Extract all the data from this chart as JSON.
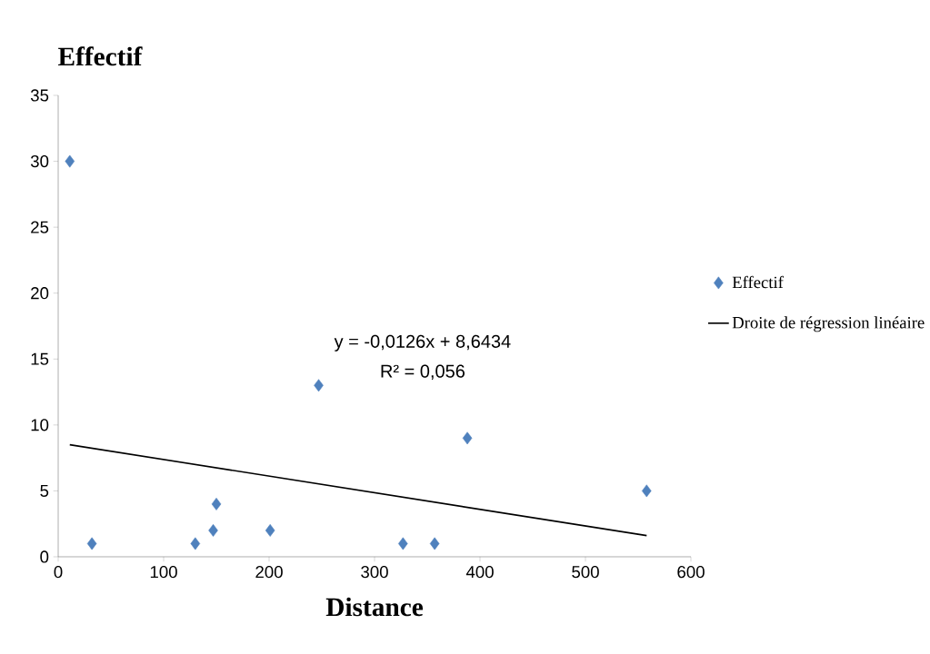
{
  "chart_data": {
    "type": "scatter",
    "xlabel": "Distance",
    "ylabel": "Effectif",
    "xlim": [
      0,
      600
    ],
    "ylim": [
      0,
      35
    ],
    "xticks": [
      0,
      100,
      200,
      300,
      400,
      500,
      600
    ],
    "yticks": [
      0,
      5,
      10,
      15,
      20,
      25,
      30,
      35
    ],
    "grid": false,
    "legend": "right",
    "marker": "diamond",
    "annotations": [
      "y = -0,0126x + 8,6434",
      "R² = 0,056"
    ],
    "series": [
      {
        "name": "Effectif",
        "color": "#4f81bd",
        "x": [
          11,
          32,
          130,
          147,
          150,
          201,
          247,
          327,
          357,
          388,
          558
        ],
        "values": [
          30,
          1,
          1,
          2,
          4,
          2,
          13,
          1,
          1,
          9,
          5
        ]
      },
      {
        "name": "Droite de régression linéaire",
        "type": "line",
        "color": "#000000",
        "x": [
          11,
          558
        ],
        "values": [
          8.5,
          1.61
        ],
        "marker": "none",
        "line_style": "solid"
      }
    ]
  }
}
